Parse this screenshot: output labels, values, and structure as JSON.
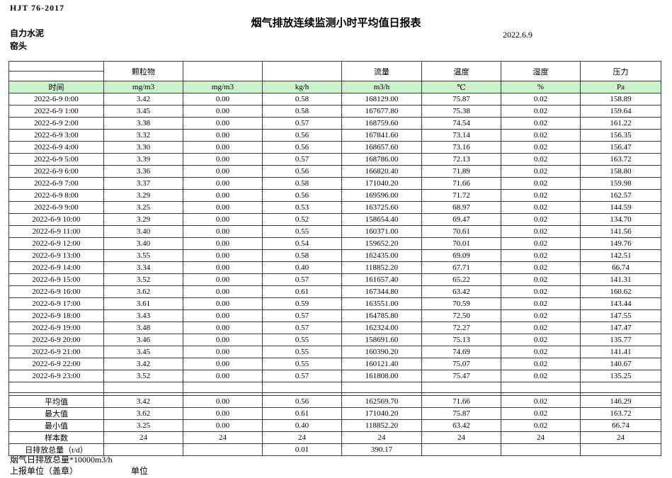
{
  "header": {
    "standard": "HJT  76-2017",
    "title": "烟气排放连续监测小时平均值日报表",
    "date": "2022.6.9",
    "company": "自力水泥",
    "location": "窑头"
  },
  "table": {
    "group_headers": [
      "",
      "颗粒物",
      "",
      "",
      "流量",
      "温度",
      "湿度",
      "压力"
    ],
    "unit_row": [
      "时间",
      "mg/m3",
      "mg/m3",
      "kg/h",
      "m3/h",
      "℃",
      "%",
      "Pa"
    ],
    "rows": [
      [
        "2022-6-9 0:00",
        "3.42",
        "0.00",
        "0.58",
        "168129.00",
        "75.87",
        "0.02",
        "158.89"
      ],
      [
        "2022-6-9 1:00",
        "3.45",
        "0.00",
        "0.58",
        "167677.80",
        "75.38",
        "0.02",
        "159.64"
      ],
      [
        "2022-6-9 2:00",
        "3.38",
        "0.00",
        "0.57",
        "168759.60",
        "74.54",
        "0.02",
        "161.22"
      ],
      [
        "2022-6-9 3:00",
        "3.32",
        "0.00",
        "0.56",
        "167841.60",
        "73.14",
        "0.02",
        "156.35"
      ],
      [
        "2022-6-9 4:00",
        "3.30",
        "0.00",
        "0.56",
        "168657.60",
        "73.16",
        "0.02",
        "156.47"
      ],
      [
        "2022-6-9 5:00",
        "3.39",
        "0.00",
        "0.57",
        "168786.00",
        "72.13",
        "0.02",
        "163.72"
      ],
      [
        "2022-6-9 6:00",
        "3.36",
        "0.00",
        "0.56",
        "166820.40",
        "71.89",
        "0.02",
        "158.80"
      ],
      [
        "2022-6-9 7:00",
        "3.37",
        "0.00",
        "0.58",
        "171040.20",
        "71.66",
        "0.02",
        "159.98"
      ],
      [
        "2022-6-9 8:00",
        "3.29",
        "0.00",
        "0.56",
        "169596.00",
        "71.72",
        "0.02",
        "162.57"
      ],
      [
        "2022-6-9 9:00",
        "3.25",
        "0.00",
        "0.53",
        "163725.60",
        "68.97",
        "0.02",
        "144.59"
      ],
      [
        "2022-6-9 10:00",
        "3.29",
        "0.00",
        "0.52",
        "158654.40",
        "69.47",
        "0.02",
        "134.70"
      ],
      [
        "2022-6-9 11:00",
        "3.40",
        "0.00",
        "0.55",
        "160371.00",
        "70.61",
        "0.02",
        "141.56"
      ],
      [
        "2022-6-9 12:00",
        "3.40",
        "0.00",
        "0.54",
        "159652.20",
        "70.01",
        "0.02",
        "149.76"
      ],
      [
        "2022-6-9 13:00",
        "3.55",
        "0.00",
        "0.58",
        "162435.00",
        "69.09",
        "0.02",
        "142.51"
      ],
      [
        "2022-6-9 14:00",
        "3.34",
        "0.00",
        "0.40",
        "118852.20",
        "67.71",
        "0.02",
        "66.74"
      ],
      [
        "2022-6-9 15:00",
        "3.52",
        "0.00",
        "0.57",
        "161657.40",
        "65.22",
        "0.02",
        "141.31"
      ],
      [
        "2022-6-9 16:00",
        "3.62",
        "0.00",
        "0.61",
        "167344.80",
        "63.42",
        "0.02",
        "160.62"
      ],
      [
        "2022-6-9 17:00",
        "3.61",
        "0.00",
        "0.59",
        "163551.00",
        "70.59",
        "0.02",
        "143.44"
      ],
      [
        "2022-6-9 18:00",
        "3.43",
        "0.00",
        "0.57",
        "164785.80",
        "72.50",
        "0.02",
        "147.55"
      ],
      [
        "2022-6-9 19:00",
        "3.48",
        "0.00",
        "0.57",
        "162324.00",
        "72.27",
        "0.02",
        "147.47"
      ],
      [
        "2022-6-9 20:00",
        "3.46",
        "0.00",
        "0.55",
        "158691.60",
        "75.13",
        "0.02",
        "135.77"
      ],
      [
        "2022-6-9 21:00",
        "3.45",
        "0.00",
        "0.55",
        "160390.20",
        "74.69",
        "0.02",
        "141.41"
      ],
      [
        "2022-6-9 22:00",
        "3.42",
        "0.00",
        "0.55",
        "160121.40",
        "75.07",
        "0.02",
        "140.67"
      ],
      [
        "2022-6-9 23:00",
        "3.52",
        "0.00",
        "0.57",
        "161808.00",
        "75.47",
        "0.02",
        "135.25"
      ]
    ],
    "summary": [
      {
        "label": "平均值",
        "values": [
          "3.42",
          "0.00",
          "0.56",
          "162569.70",
          "71.66",
          "0.02",
          "146.29"
        ]
      },
      {
        "label": "最大值",
        "values": [
          "3.62",
          "0.00",
          "0.61",
          "171040.20",
          "75.87",
          "0.02",
          "163.72"
        ]
      },
      {
        "label": "最小值",
        "values": [
          "3.25",
          "0.00",
          "0.40",
          "118852.20",
          "63.42",
          "0.02",
          "66.74"
        ]
      },
      {
        "label": "样本数",
        "values": [
          "24",
          "24",
          "24",
          "24",
          "24",
          "24",
          "24"
        ]
      },
      {
        "label": "日排放总量（t/d）",
        "values": [
          "",
          "",
          "0.01",
          "390.17",
          "",
          "",
          ""
        ]
      }
    ]
  },
  "footer": {
    "note": "烟气日排放总量*10000m3/h",
    "report_unit_label": "上报单位（盖章）",
    "unit_label": "单位"
  },
  "colors": {
    "header_green": "#ccf2cc",
    "border": "#3d3d3d",
    "background": "#ffffff"
  }
}
